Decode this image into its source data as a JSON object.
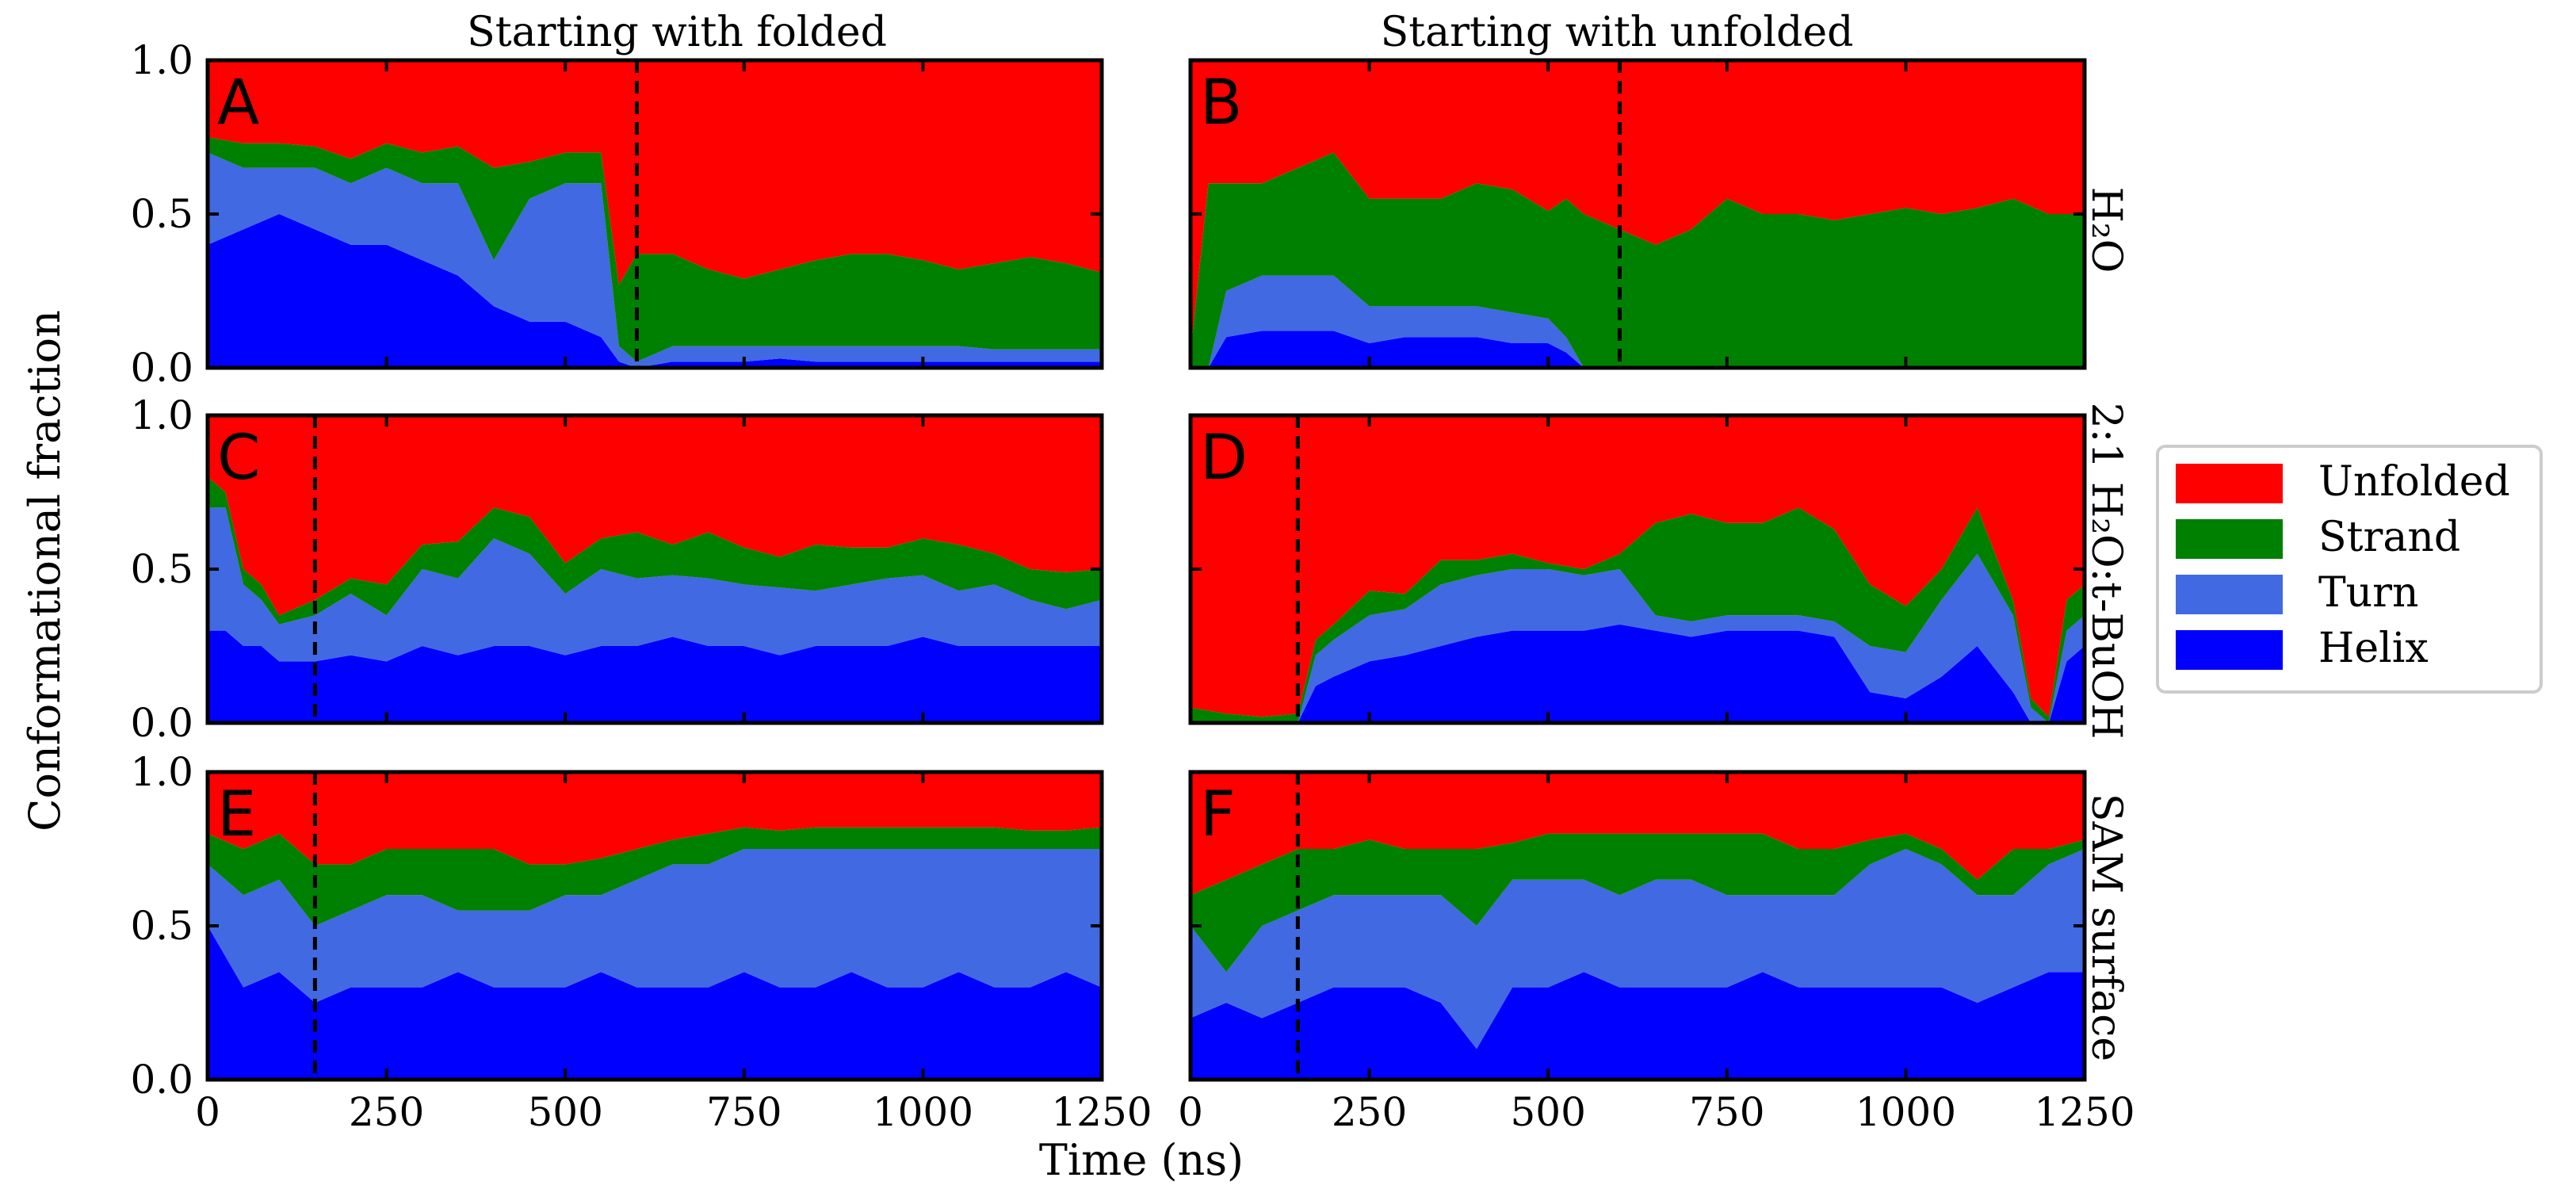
{
  "figure": {
    "col_titles": [
      "Starting with folded",
      "Starting with unfolded"
    ],
    "row_labels": [
      "H₂O",
      "2:1 H₂O:t-BuOH",
      "SAM surface"
    ],
    "xlabel": "Time (ns)",
    "ylabel": "Conformational fraction"
  },
  "legend": {
    "items": [
      {
        "label": "Unfolded",
        "color": "#ff0000"
      },
      {
        "label": "Strand",
        "color": "#008000"
      },
      {
        "label": "Turn",
        "color": "#4169e1"
      },
      {
        "label": "Helix",
        "color": "#0000ff"
      }
    ],
    "placement": "right"
  },
  "chart_data": [
    {
      "panel": "A",
      "type": "area",
      "stacked": true,
      "xlim": [
        0,
        1250
      ],
      "ylim": [
        0,
        1
      ],
      "xticks": [
        0,
        250,
        500,
        750,
        1000,
        1250
      ],
      "yticks": [
        "0.0",
        "0.5",
        "1.0"
      ],
      "marker_line_x": 600,
      "x": [
        0,
        50,
        100,
        150,
        200,
        250,
        300,
        350,
        400,
        450,
        500,
        550,
        575,
        600,
        650,
        700,
        750,
        800,
        850,
        900,
        950,
        1000,
        1050,
        1100,
        1150,
        1200,
        1250
      ],
      "series": [
        {
          "name": "Helix",
          "values": [
            0.4,
            0.45,
            0.5,
            0.45,
            0.4,
            0.4,
            0.35,
            0.3,
            0.2,
            0.15,
            0.15,
            0.1,
            0.02,
            0.0,
            0.02,
            0.02,
            0.02,
            0.03,
            0.02,
            0.02,
            0.02,
            0.02,
            0.02,
            0.02,
            0.02,
            0.02,
            0.02
          ]
        },
        {
          "name": "Turn",
          "values": [
            0.3,
            0.2,
            0.15,
            0.2,
            0.2,
            0.25,
            0.25,
            0.3,
            0.15,
            0.4,
            0.45,
            0.5,
            0.05,
            0.02,
            0.05,
            0.05,
            0.05,
            0.04,
            0.05,
            0.05,
            0.05,
            0.05,
            0.05,
            0.04,
            0.04,
            0.04,
            0.04
          ]
        },
        {
          "name": "Strand",
          "values": [
            0.05,
            0.08,
            0.08,
            0.07,
            0.08,
            0.08,
            0.1,
            0.12,
            0.3,
            0.12,
            0.1,
            0.1,
            0.2,
            0.35,
            0.3,
            0.25,
            0.22,
            0.25,
            0.28,
            0.3,
            0.3,
            0.28,
            0.25,
            0.28,
            0.3,
            0.28,
            0.25
          ]
        },
        {
          "name": "Unfolded",
          "values": [
            0.25,
            0.27,
            0.27,
            0.28,
            0.32,
            0.27,
            0.3,
            0.28,
            0.35,
            0.33,
            0.3,
            0.3,
            0.73,
            0.63,
            0.63,
            0.68,
            0.71,
            0.68,
            0.65,
            0.63,
            0.63,
            0.65,
            0.68,
            0.66,
            0.64,
            0.66,
            0.69
          ]
        }
      ]
    },
    {
      "panel": "B",
      "type": "area",
      "stacked": true,
      "xlim": [
        0,
        1250
      ],
      "ylim": [
        0,
        1
      ],
      "xticks": [
        0,
        250,
        500,
        750,
        1000,
        1250
      ],
      "yticks": [
        "0.0",
        "0.5",
        "1.0"
      ],
      "marker_line_x": 600,
      "x": [
        0,
        25,
        50,
        100,
        150,
        200,
        250,
        300,
        350,
        400,
        450,
        500,
        525,
        550,
        600,
        650,
        700,
        750,
        800,
        850,
        900,
        950,
        1000,
        1050,
        1100,
        1150,
        1200,
        1250
      ],
      "series": [
        {
          "name": "Helix",
          "values": [
            0.0,
            0.0,
            0.1,
            0.12,
            0.12,
            0.12,
            0.08,
            0.1,
            0.1,
            0.1,
            0.08,
            0.08,
            0.05,
            0.0,
            0.0,
            0.0,
            0.0,
            0.0,
            0.0,
            0.0,
            0.0,
            0.0,
            0.0,
            0.0,
            0.0,
            0.0,
            0.0,
            0.0
          ]
        },
        {
          "name": "Turn",
          "values": [
            0.0,
            0.0,
            0.15,
            0.18,
            0.18,
            0.18,
            0.12,
            0.1,
            0.1,
            0.1,
            0.1,
            0.08,
            0.05,
            0.0,
            0.0,
            0.0,
            0.0,
            0.0,
            0.0,
            0.0,
            0.0,
            0.0,
            0.0,
            0.0,
            0.0,
            0.0,
            0.0,
            0.0
          ]
        },
        {
          "name": "Strand",
          "values": [
            0.05,
            0.6,
            0.35,
            0.3,
            0.35,
            0.4,
            0.35,
            0.35,
            0.35,
            0.4,
            0.4,
            0.35,
            0.45,
            0.5,
            0.45,
            0.4,
            0.45,
            0.55,
            0.5,
            0.5,
            0.48,
            0.5,
            0.52,
            0.5,
            0.52,
            0.55,
            0.5,
            0.5
          ]
        },
        {
          "name": "Unfolded",
          "values": [
            0.95,
            0.4,
            0.4,
            0.4,
            0.35,
            0.3,
            0.45,
            0.45,
            0.45,
            0.4,
            0.42,
            0.49,
            0.45,
            0.5,
            0.55,
            0.6,
            0.55,
            0.45,
            0.5,
            0.5,
            0.52,
            0.5,
            0.48,
            0.5,
            0.48,
            0.45,
            0.5,
            0.5
          ]
        }
      ]
    },
    {
      "panel": "C",
      "type": "area",
      "stacked": true,
      "xlim": [
        0,
        1250
      ],
      "ylim": [
        0,
        1
      ],
      "xticks": [
        0,
        250,
        500,
        750,
        1000,
        1250
      ],
      "yticks": [
        "0.0",
        "0.5",
        "1.0"
      ],
      "marker_line_x": 150,
      "x": [
        0,
        25,
        50,
        75,
        100,
        150,
        200,
        250,
        300,
        350,
        400,
        450,
        500,
        550,
        600,
        650,
        700,
        750,
        800,
        850,
        900,
        950,
        1000,
        1050,
        1100,
        1150,
        1200,
        1250
      ],
      "series": [
        {
          "name": "Helix",
          "values": [
            0.3,
            0.3,
            0.25,
            0.25,
            0.2,
            0.2,
            0.22,
            0.2,
            0.25,
            0.22,
            0.25,
            0.25,
            0.22,
            0.25,
            0.25,
            0.28,
            0.25,
            0.25,
            0.22,
            0.25,
            0.25,
            0.25,
            0.28,
            0.25,
            0.25,
            0.25,
            0.25,
            0.25
          ]
        },
        {
          "name": "Turn",
          "values": [
            0.4,
            0.4,
            0.2,
            0.15,
            0.12,
            0.15,
            0.2,
            0.15,
            0.25,
            0.25,
            0.35,
            0.3,
            0.2,
            0.25,
            0.22,
            0.2,
            0.22,
            0.2,
            0.22,
            0.18,
            0.2,
            0.22,
            0.2,
            0.18,
            0.2,
            0.15,
            0.12,
            0.15
          ]
        },
        {
          "name": "Strand",
          "values": [
            0.1,
            0.05,
            0.05,
            0.05,
            0.03,
            0.05,
            0.05,
            0.1,
            0.08,
            0.12,
            0.1,
            0.12,
            0.1,
            0.1,
            0.15,
            0.1,
            0.15,
            0.12,
            0.1,
            0.15,
            0.12,
            0.1,
            0.12,
            0.15,
            0.1,
            0.1,
            0.12,
            0.1
          ]
        },
        {
          "name": "Unfolded",
          "values": [
            0.2,
            0.25,
            0.5,
            0.55,
            0.65,
            0.6,
            0.53,
            0.55,
            0.42,
            0.41,
            0.3,
            0.33,
            0.48,
            0.4,
            0.38,
            0.42,
            0.38,
            0.43,
            0.46,
            0.42,
            0.43,
            0.43,
            0.4,
            0.42,
            0.45,
            0.5,
            0.51,
            0.5
          ]
        }
      ]
    },
    {
      "panel": "D",
      "type": "area",
      "stacked": true,
      "xlim": [
        0,
        1250
      ],
      "ylim": [
        0,
        1
      ],
      "xticks": [
        0,
        250,
        500,
        750,
        1000,
        1250
      ],
      "yticks": [
        "0.0",
        "0.5",
        "1.0"
      ],
      "marker_line_x": 150,
      "x": [
        0,
        50,
        100,
        150,
        175,
        200,
        250,
        300,
        350,
        400,
        450,
        500,
        550,
        600,
        650,
        700,
        750,
        800,
        850,
        900,
        950,
        1000,
        1050,
        1100,
        1150,
        1175,
        1200,
        1225,
        1250
      ],
      "series": [
        {
          "name": "Helix",
          "values": [
            0.0,
            0.0,
            0.0,
            0.0,
            0.12,
            0.15,
            0.2,
            0.22,
            0.25,
            0.28,
            0.3,
            0.3,
            0.3,
            0.32,
            0.3,
            0.28,
            0.3,
            0.3,
            0.3,
            0.28,
            0.1,
            0.08,
            0.15,
            0.25,
            0.1,
            0.0,
            0.0,
            0.2,
            0.25
          ]
        },
        {
          "name": "Turn",
          "values": [
            0.0,
            0.0,
            0.0,
            0.0,
            0.1,
            0.12,
            0.15,
            0.15,
            0.2,
            0.2,
            0.2,
            0.2,
            0.18,
            0.18,
            0.05,
            0.05,
            0.05,
            0.05,
            0.05,
            0.05,
            0.15,
            0.15,
            0.25,
            0.3,
            0.25,
            0.05,
            0.0,
            0.1,
            0.1
          ]
        },
        {
          "name": "Strand",
          "values": [
            0.05,
            0.03,
            0.02,
            0.03,
            0.05,
            0.05,
            0.08,
            0.05,
            0.08,
            0.05,
            0.05,
            0.02,
            0.02,
            0.05,
            0.3,
            0.35,
            0.3,
            0.3,
            0.35,
            0.3,
            0.2,
            0.15,
            0.1,
            0.15,
            0.05,
            0.03,
            0.02,
            0.1,
            0.1
          ]
        },
        {
          "name": "Unfolded",
          "values": [
            0.95,
            0.97,
            0.98,
            0.97,
            0.73,
            0.68,
            0.57,
            0.58,
            0.47,
            0.47,
            0.45,
            0.48,
            0.5,
            0.45,
            0.35,
            0.32,
            0.35,
            0.35,
            0.3,
            0.37,
            0.55,
            0.62,
            0.5,
            0.3,
            0.6,
            0.92,
            0.98,
            0.6,
            0.55
          ]
        }
      ]
    },
    {
      "panel": "E",
      "type": "area",
      "stacked": true,
      "xlim": [
        0,
        1250
      ],
      "ylim": [
        0,
        1
      ],
      "xticks": [
        0,
        250,
        500,
        750,
        1000,
        1250
      ],
      "yticks": [
        "0.0",
        "0.5",
        "1.0"
      ],
      "marker_line_x": 150,
      "x": [
        0,
        50,
        100,
        150,
        200,
        250,
        300,
        350,
        400,
        450,
        500,
        550,
        600,
        650,
        700,
        750,
        800,
        850,
        900,
        950,
        1000,
        1050,
        1100,
        1150,
        1200,
        1250
      ],
      "series": [
        {
          "name": "Helix",
          "values": [
            0.5,
            0.3,
            0.35,
            0.25,
            0.3,
            0.3,
            0.3,
            0.35,
            0.3,
            0.3,
            0.3,
            0.35,
            0.3,
            0.3,
            0.3,
            0.35,
            0.3,
            0.3,
            0.35,
            0.3,
            0.3,
            0.35,
            0.3,
            0.3,
            0.35,
            0.3
          ]
        },
        {
          "name": "Turn",
          "values": [
            0.2,
            0.3,
            0.3,
            0.25,
            0.25,
            0.3,
            0.3,
            0.2,
            0.25,
            0.25,
            0.3,
            0.25,
            0.35,
            0.4,
            0.4,
            0.4,
            0.45,
            0.45,
            0.4,
            0.45,
            0.45,
            0.4,
            0.45,
            0.45,
            0.4,
            0.45
          ]
        },
        {
          "name": "Strand",
          "values": [
            0.1,
            0.15,
            0.15,
            0.2,
            0.15,
            0.15,
            0.15,
            0.2,
            0.2,
            0.15,
            0.1,
            0.12,
            0.1,
            0.08,
            0.1,
            0.07,
            0.06,
            0.07,
            0.07,
            0.07,
            0.07,
            0.07,
            0.07,
            0.06,
            0.06,
            0.07
          ]
        },
        {
          "name": "Unfolded",
          "values": [
            0.2,
            0.25,
            0.2,
            0.3,
            0.3,
            0.25,
            0.25,
            0.25,
            0.25,
            0.3,
            0.3,
            0.28,
            0.25,
            0.22,
            0.2,
            0.18,
            0.19,
            0.18,
            0.18,
            0.18,
            0.18,
            0.18,
            0.18,
            0.19,
            0.19,
            0.18
          ]
        }
      ]
    },
    {
      "panel": "F",
      "type": "area",
      "stacked": true,
      "xlim": [
        0,
        1250
      ],
      "ylim": [
        0,
        1
      ],
      "xticks": [
        0,
        250,
        500,
        750,
        1000,
        1250
      ],
      "yticks": [
        "0.0",
        "0.5",
        "1.0"
      ],
      "marker_line_x": 150,
      "x": [
        0,
        50,
        100,
        150,
        200,
        250,
        300,
        350,
        400,
        450,
        500,
        550,
        600,
        650,
        700,
        750,
        800,
        850,
        900,
        950,
        1000,
        1050,
        1100,
        1150,
        1200,
        1250
      ],
      "series": [
        {
          "name": "Helix",
          "values": [
            0.2,
            0.25,
            0.2,
            0.25,
            0.3,
            0.3,
            0.3,
            0.25,
            0.1,
            0.3,
            0.3,
            0.35,
            0.3,
            0.3,
            0.3,
            0.3,
            0.35,
            0.3,
            0.3,
            0.3,
            0.3,
            0.3,
            0.25,
            0.3,
            0.35,
            0.35
          ]
        },
        {
          "name": "Turn",
          "values": [
            0.3,
            0.1,
            0.3,
            0.3,
            0.3,
            0.3,
            0.3,
            0.35,
            0.4,
            0.35,
            0.35,
            0.3,
            0.3,
            0.35,
            0.35,
            0.3,
            0.25,
            0.3,
            0.3,
            0.4,
            0.45,
            0.4,
            0.35,
            0.3,
            0.35,
            0.4
          ]
        },
        {
          "name": "Strand",
          "values": [
            0.1,
            0.3,
            0.2,
            0.2,
            0.15,
            0.18,
            0.15,
            0.15,
            0.25,
            0.12,
            0.15,
            0.15,
            0.2,
            0.15,
            0.15,
            0.2,
            0.2,
            0.15,
            0.15,
            0.08,
            0.05,
            0.05,
            0.05,
            0.15,
            0.05,
            0.03
          ]
        },
        {
          "name": "Unfolded",
          "values": [
            0.4,
            0.35,
            0.3,
            0.25,
            0.25,
            0.22,
            0.25,
            0.25,
            0.25,
            0.23,
            0.2,
            0.2,
            0.2,
            0.2,
            0.2,
            0.2,
            0.2,
            0.25,
            0.25,
            0.22,
            0.2,
            0.25,
            0.35,
            0.25,
            0.25,
            0.22
          ]
        }
      ]
    }
  ]
}
